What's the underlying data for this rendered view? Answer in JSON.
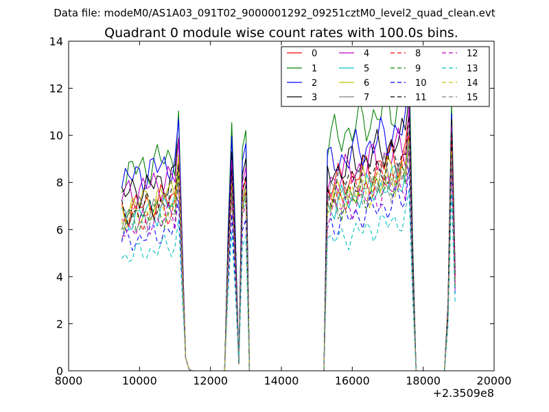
{
  "figure": {
    "header": "Data file: modeM0/AS1A03_091T02_9000001292_09251cztM0_level2_quad_clean.evt",
    "title": "Quadrant 0 module wise count rates with 100.0s bins.",
    "x_offset_label": "+2.3509e8"
  },
  "chart_data": {
    "type": "line",
    "title": "Quadrant 0 module wise count rates with 100.0s bins.",
    "xlabel": "",
    "ylabel": "",
    "xlim": [
      8000,
      20000
    ],
    "ylim": [
      0,
      14
    ],
    "x_offset": 235090000,
    "xticks": [
      8000,
      10000,
      12000,
      14000,
      16000,
      18000,
      20000
    ],
    "yticks": [
      0,
      2,
      4,
      6,
      8,
      10,
      12,
      14
    ],
    "grid": false,
    "legend_placement": "upper-right",
    "legend_columns": 4,
    "x": [
      9500,
      9600,
      9700,
      9800,
      9900,
      10000,
      10100,
      10200,
      10300,
      10400,
      10500,
      10600,
      10700,
      10800,
      10900,
      11000,
      11100,
      11200,
      11300,
      11400,
      11500,
      12400,
      12500,
      12600,
      12700,
      12800,
      12900,
      13000,
      13100,
      15200,
      15300,
      15400,
      15500,
      15600,
      15700,
      15800,
      15900,
      16000,
      16100,
      16200,
      16300,
      16400,
      16500,
      16600,
      16700,
      16800,
      16900,
      17000,
      17100,
      17200,
      17300,
      17400,
      17500,
      17600,
      17700,
      17800,
      18600,
      18700,
      18800,
      18900
    ],
    "series": [
      {
        "name": "0",
        "color": "#ff0000",
        "dash": "solid",
        "anchors": [
          7.8,
          8.9,
          10.1,
          3.9
        ]
      },
      {
        "name": "1",
        "color": "#008000",
        "dash": "solid",
        "anchors": [
          9.6,
          11.1,
          12.6,
          4.4
        ]
      },
      {
        "name": "2",
        "color": "#0000ff",
        "dash": "solid",
        "anchors": [
          9.3,
          10.5,
          11.3,
          4.2
        ]
      },
      {
        "name": "3",
        "color": "#000000",
        "dash": "solid",
        "anchors": [
          8.6,
          9.8,
          10.8,
          4.1
        ]
      },
      {
        "name": "4",
        "color": "#bf00bf",
        "dash": "solid",
        "anchors": [
          8.6,
          9.4,
          10.4,
          4.0
        ]
      },
      {
        "name": "5",
        "color": "#00bfbf",
        "dash": "solid",
        "anchors": [
          7.4,
          8.2,
          9.0,
          3.5
        ]
      },
      {
        "name": "6",
        "color": "#bfbf00",
        "dash": "solid",
        "anchors": [
          8.0,
          8.5,
          9.4,
          3.7
        ]
      },
      {
        "name": "7",
        "color": "#808080",
        "dash": "solid",
        "anchors": [
          7.6,
          8.6,
          9.5,
          3.6
        ]
      },
      {
        "name": "8",
        "color": "#ff0000",
        "dash": "dashed",
        "anchors": [
          7.3,
          8.3,
          9.3,
          3.8
        ]
      },
      {
        "name": "9",
        "color": "#008000",
        "dash": "dashed",
        "anchors": [
          7.2,
          7.9,
          8.9,
          3.6
        ]
      },
      {
        "name": "10",
        "color": "#0000ff",
        "dash": "dashed",
        "anchors": [
          6.3,
          7.0,
          8.0,
          3.3
        ]
      },
      {
        "name": "11",
        "color": "#000000",
        "dash": "dashed",
        "anchors": [
          7.6,
          9.0,
          10.0,
          3.9
        ]
      },
      {
        "name": "12",
        "color": "#bf00bf",
        "dash": "dashed",
        "anchors": [
          6.9,
          7.7,
          8.7,
          3.4
        ]
      },
      {
        "name": "13",
        "color": "#00bfbf",
        "dash": "dashed",
        "anchors": [
          5.6,
          6.2,
          7.1,
          2.9
        ]
      },
      {
        "name": "14",
        "color": "#bfbf00",
        "dash": "dashed",
        "anchors": [
          7.4,
          8.3,
          9.1,
          3.6
        ]
      },
      {
        "name": "15",
        "color": "#808080",
        "dash": "dashed",
        "anchors": [
          7.0,
          8.1,
          9.0,
          3.5
        ]
      }
    ]
  }
}
